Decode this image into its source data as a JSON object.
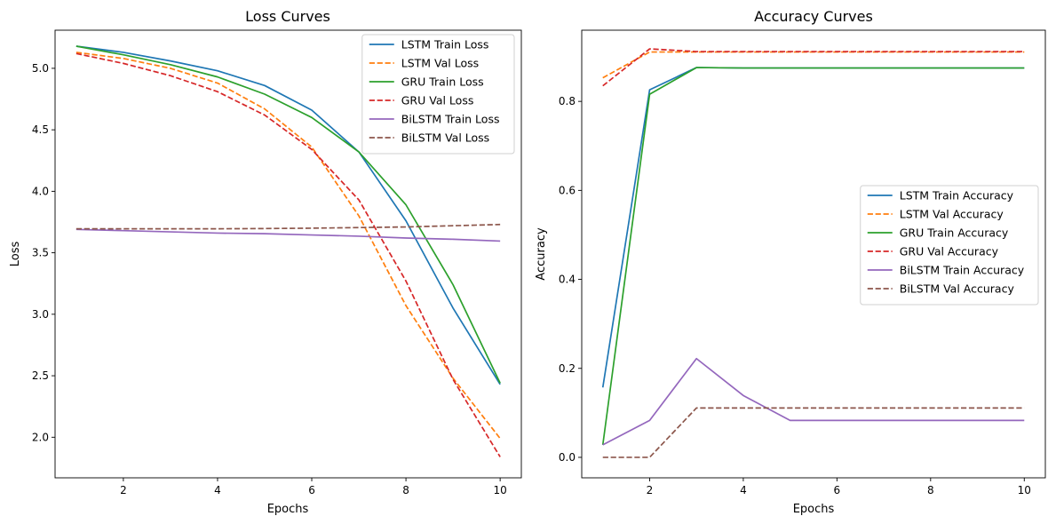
{
  "chart_data": [
    {
      "type": "line",
      "title": "Loss Curves",
      "xlabel": "Epochs",
      "ylabel": "Loss",
      "xlim": [
        0.55,
        10.45
      ],
      "ylim": [
        1.67,
        5.31
      ],
      "xticks": [
        2,
        4,
        6,
        8,
        10
      ],
      "yticks": [
        2.0,
        2.5,
        3.0,
        3.5,
        4.0,
        4.5,
        5.0
      ],
      "grid": false,
      "legend_position": "upper right",
      "x": [
        1,
        2,
        3,
        4,
        5,
        6,
        7,
        8,
        9,
        10
      ],
      "series": [
        {
          "name": "LSTM Train Loss",
          "color": "#1f77b4",
          "dash": false,
          "values": [
            5.18,
            5.13,
            5.06,
            4.98,
            4.86,
            4.66,
            4.32,
            3.76,
            3.05,
            2.43
          ]
        },
        {
          "name": "LSTM Val Loss",
          "color": "#ff7f0e",
          "dash": true,
          "values": [
            5.13,
            5.08,
            5.0,
            4.88,
            4.67,
            4.36,
            3.8,
            3.07,
            2.48,
            1.99
          ]
        },
        {
          "name": "GRU Train Loss",
          "color": "#2ca02c",
          "dash": false,
          "values": [
            5.18,
            5.11,
            5.03,
            4.93,
            4.79,
            4.6,
            4.32,
            3.89,
            3.24,
            2.44
          ]
        },
        {
          "name": "GRU Val Loss",
          "color": "#d62728",
          "dash": true,
          "values": [
            5.12,
            5.04,
            4.94,
            4.81,
            4.62,
            4.34,
            3.93,
            3.27,
            2.47,
            1.84
          ]
        },
        {
          "name": "BiLSTM Train Loss",
          "color": "#9467bd",
          "dash": false,
          "values": [
            3.69,
            3.68,
            3.67,
            3.66,
            3.655,
            3.645,
            3.635,
            3.62,
            3.61,
            3.595
          ]
        },
        {
          "name": "BiLSTM Val Loss",
          "color": "#8c564b",
          "dash": true,
          "values": [
            3.695,
            3.695,
            3.695,
            3.695,
            3.697,
            3.7,
            3.705,
            3.71,
            3.72,
            3.73
          ]
        }
      ]
    },
    {
      "type": "line",
      "title": "Accuracy Curves",
      "xlabel": "Epochs",
      "ylabel": "Accuracy",
      "xlim": [
        0.55,
        10.45
      ],
      "ylim": [
        -0.046,
        0.96
      ],
      "xticks": [
        2,
        4,
        6,
        8,
        10
      ],
      "yticks": [
        0.0,
        0.2,
        0.4,
        0.6,
        0.8
      ],
      "grid": false,
      "legend_position": "center right",
      "x": [
        1,
        2,
        3,
        4,
        5,
        6,
        7,
        8,
        9,
        10
      ],
      "series": [
        {
          "name": "LSTM Train Accuracy",
          "color": "#1f77b4",
          "dash": false,
          "values": [
            0.157,
            0.826,
            0.876,
            0.875,
            0.875,
            0.875,
            0.875,
            0.875,
            0.875,
            0.875
          ]
        },
        {
          "name": "LSTM Val Accuracy",
          "color": "#ff7f0e",
          "dash": true,
          "values": [
            0.853,
            0.911,
            0.911,
            0.911,
            0.911,
            0.911,
            0.911,
            0.911,
            0.911,
            0.911
          ]
        },
        {
          "name": "GRU Train Accuracy",
          "color": "#2ca02c",
          "dash": false,
          "values": [
            0.028,
            0.816,
            0.876,
            0.875,
            0.875,
            0.875,
            0.875,
            0.875,
            0.875,
            0.875
          ]
        },
        {
          "name": "GRU Val Accuracy",
          "color": "#d62728",
          "dash": true,
          "values": [
            0.835,
            0.918,
            0.912,
            0.912,
            0.912,
            0.912,
            0.912,
            0.912,
            0.912,
            0.912
          ]
        },
        {
          "name": "BiLSTM Train Accuracy",
          "color": "#9467bd",
          "dash": false,
          "values": [
            0.028,
            0.083,
            0.222,
            0.139,
            0.083,
            0.083,
            0.083,
            0.083,
            0.083,
            0.083
          ]
        },
        {
          "name": "BiLSTM Val Accuracy",
          "color": "#8c564b",
          "dash": true,
          "values": [
            0.0,
            0.0,
            0.111,
            0.111,
            0.111,
            0.111,
            0.111,
            0.111,
            0.111,
            0.111
          ]
        }
      ]
    }
  ]
}
